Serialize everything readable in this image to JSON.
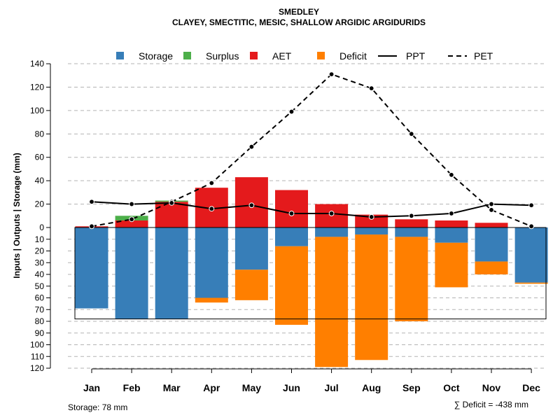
{
  "chart_data": {
    "type": "bar",
    "title": "SMEDLEY",
    "subtitle": "CLAYEY, SMECTITIC, MESIC, SHALLOW ARGIDIC ARGIDURIDS",
    "ylabel": "Inputs | Outputs | Storage    (mm)",
    "ylim": [
      -120,
      140
    ],
    "yticks_up": [
      0,
      20,
      40,
      60,
      80,
      100,
      120,
      140
    ],
    "yticks_down": [
      10,
      20,
      30,
      40,
      50,
      60,
      70,
      80,
      90,
      100,
      110,
      120
    ],
    "categories": [
      "Jan",
      "Feb",
      "Mar",
      "Apr",
      "May",
      "Jun",
      "Jul",
      "Aug",
      "Sep",
      "Oct",
      "Nov",
      "Dec"
    ],
    "legend": [
      "Storage",
      "Surplus",
      "AET",
      "Deficit",
      "PPT",
      "PET"
    ],
    "colors": {
      "storage": "#377EB8",
      "surplus": "#4DAF4A",
      "aet": "#E41A1C",
      "deficit": "#FF7F00",
      "line": "#000000"
    },
    "series": [
      {
        "name": "AET",
        "values": [
          1,
          6,
          22,
          34,
          43,
          32,
          20,
          11,
          7,
          6,
          4,
          0
        ]
      },
      {
        "name": "Surplus",
        "values": [
          0,
          4,
          1,
          0,
          0,
          0,
          0,
          0,
          0,
          0,
          0,
          0
        ]
      },
      {
        "name": "Storage",
        "values": [
          69,
          78,
          78,
          60,
          36,
          16,
          8,
          6,
          8,
          13,
          29,
          47
        ]
      },
      {
        "name": "Deficit",
        "values": [
          0,
          0,
          0,
          4,
          26,
          67,
          111,
          107,
          72,
          38,
          11,
          1
        ]
      },
      {
        "name": "PPT",
        "values": [
          22,
          20,
          21,
          16,
          19,
          12,
          12,
          9,
          10,
          12,
          20,
          19
        ]
      },
      {
        "name": "PET",
        "values": [
          1,
          7,
          22,
          38,
          69,
          99,
          131,
          119,
          80,
          45,
          15,
          1
        ]
      }
    ],
    "storage_capacity": 78,
    "footer_storage": "Storage: 78 mm",
    "footer_deficit": "∑ Deficit = -438 mm"
  }
}
